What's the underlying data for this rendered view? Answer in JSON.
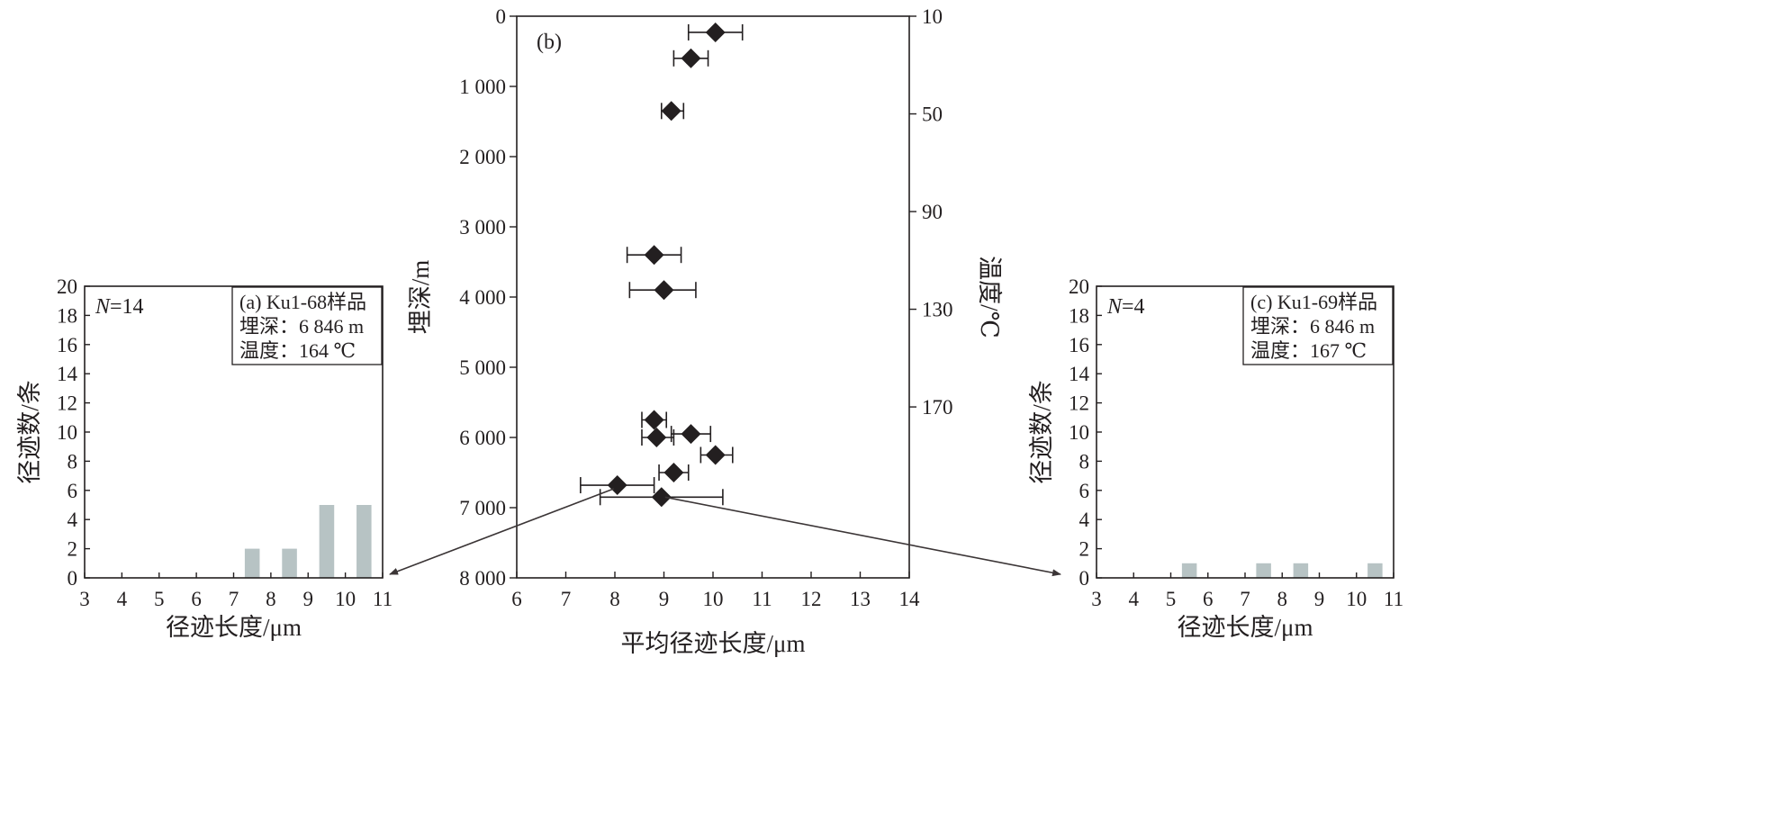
{
  "chart_data": [
    {
      "id": "a",
      "type": "bar",
      "title": "(a) Ku1-68样品",
      "info_lines": [
        "埋深：6 846 m",
        "温度：164 ℃"
      ],
      "n_label_prefix": "N",
      "n_label_suffix": "=14",
      "xlabel": "径迹长度/μm",
      "ylabel": "径迹数/条",
      "xlim": [
        3,
        11
      ],
      "ylim": [
        0,
        20
      ],
      "xticks": [
        3,
        4,
        5,
        6,
        7,
        8,
        9,
        10,
        11
      ],
      "yticks": [
        0,
        2,
        4,
        6,
        8,
        10,
        12,
        14,
        16,
        18,
        20
      ],
      "x": [
        7.5,
        8.5,
        9.5,
        10.5
      ],
      "values": [
        2,
        2,
        5,
        5
      ],
      "bar_width": 0.4,
      "bar_color": "#b7c3c4",
      "grid": false
    },
    {
      "id": "b",
      "type": "scatter",
      "title": "(b)",
      "xlabel": "平均径迹长度/μm",
      "ylabel": "埋深/m",
      "y2label": "温度/℃",
      "xlim": [
        6,
        14
      ],
      "ylim": [
        0,
        8000
      ],
      "y_inverted": true,
      "xticks": [
        6,
        7,
        8,
        9,
        10,
        11,
        12,
        13,
        14
      ],
      "yticks": [
        0,
        1000,
        2000,
        3000,
        4000,
        5000,
        6000,
        7000,
        8000
      ],
      "ytick_labels": [
        "0",
        "1 000",
        "2 000",
        "3 000",
        "4 000",
        "5 000",
        "6 000",
        "7 000",
        "8 000"
      ],
      "y2_range": [
        10,
        240
      ],
      "y2ticks": [
        10,
        50,
        90,
        130,
        170
      ],
      "marker": "diamond",
      "marker_color": "#231f20",
      "grid": false,
      "points": [
        {
          "x": 10.05,
          "y": 230,
          "xerr": [
            9.5,
            10.6
          ]
        },
        {
          "x": 9.55,
          "y": 600,
          "xerr": [
            9.2,
            9.9
          ]
        },
        {
          "x": 9.15,
          "y": 1350,
          "xerr": [
            8.95,
            9.4
          ]
        },
        {
          "x": 8.8,
          "y": 3400,
          "xerr": [
            8.25,
            9.35
          ]
        },
        {
          "x": 9.0,
          "y": 3900,
          "xerr": [
            8.3,
            9.65
          ]
        },
        {
          "x": 8.8,
          "y": 5750,
          "xerr": [
            8.55,
            9.05
          ]
        },
        {
          "x": 9.55,
          "y": 5950,
          "xerr": [
            9.15,
            9.95
          ]
        },
        {
          "x": 8.85,
          "y": 6000,
          "xerr": [
            8.55,
            9.2
          ]
        },
        {
          "x": 10.05,
          "y": 6250,
          "xerr": [
            9.75,
            10.4
          ]
        },
        {
          "x": 9.2,
          "y": 6500,
          "xerr": [
            8.9,
            9.5
          ]
        },
        {
          "x": 8.05,
          "y": 6680,
          "xerr": [
            7.3,
            8.8
          ]
        },
        {
          "x": 8.95,
          "y": 6850,
          "xerr": [
            7.7,
            10.2
          ]
        }
      ]
    },
    {
      "id": "c",
      "type": "bar",
      "title": "(c) Ku1-69样品",
      "info_lines": [
        "埋深：6 846 m",
        "温度：167 ℃"
      ],
      "n_label_prefix": "N",
      "n_label_suffix": "=4",
      "xlabel": "径迹长度/μm",
      "ylabel": "径迹数/条",
      "xlim": [
        3,
        11
      ],
      "ylim": [
        0,
        20
      ],
      "xticks": [
        3,
        4,
        5,
        6,
        7,
        8,
        9,
        10,
        11
      ],
      "yticks": [
        0,
        2,
        4,
        6,
        8,
        10,
        12,
        14,
        16,
        18,
        20
      ],
      "x": [
        5.5,
        7.5,
        8.5,
        10.5
      ],
      "values": [
        1,
        1,
        1,
        1
      ],
      "bar_width": 0.4,
      "bar_color": "#b7c3c4",
      "grid": false
    }
  ]
}
